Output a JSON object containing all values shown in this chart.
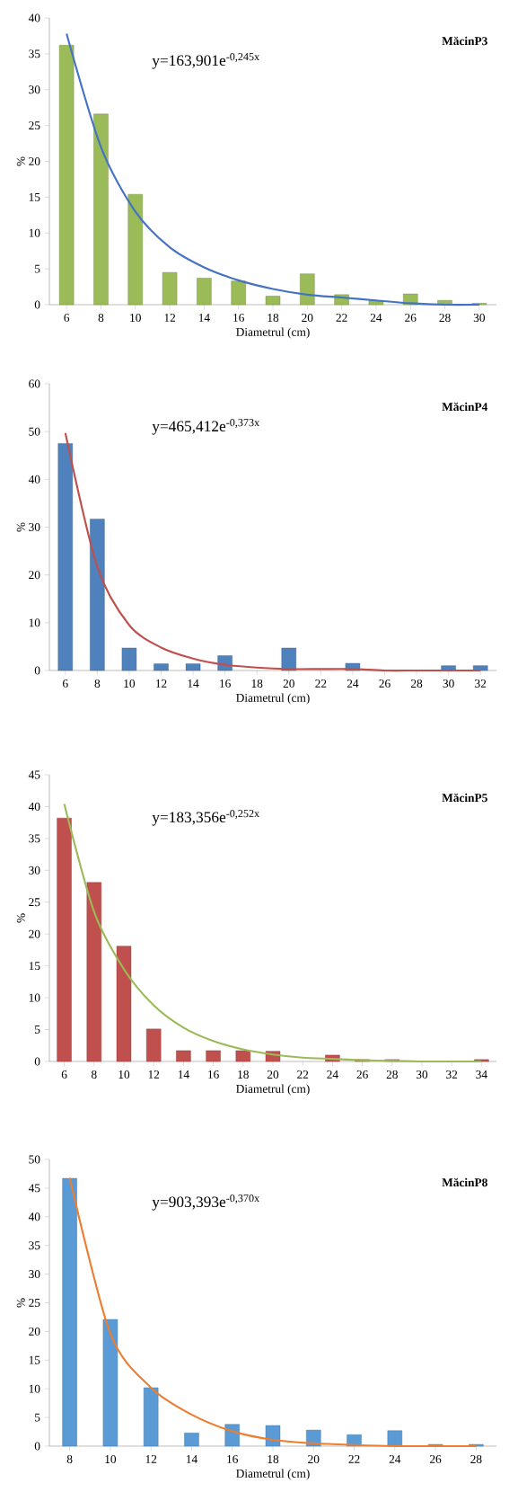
{
  "chart_data": [
    {
      "type": "bar",
      "title": "MăcinP3",
      "xlabel": "Diametrul (cm)",
      "ylabel": "%",
      "annotations": [
        "y=163,901e$^{-0,245x}$"
      ],
      "categories": [
        "6",
        "8",
        "10",
        "12",
        "14",
        "16",
        "18",
        "20",
        "22",
        "24",
        "26",
        "28",
        "30"
      ],
      "series": [
        {
          "color": "#9bbb59",
          "values": [
            36.2,
            26.6,
            15.4,
            4.5,
            3.7,
            3.3,
            1.2,
            4.3,
            1.4,
            0.6,
            1.5,
            0.6,
            0.2
          ]
        },
        {
          "type": "line",
          "color": "#4472c4",
          "values": [
            37.8,
            22.0,
            13.0,
            8.0,
            5.2,
            3.4,
            2.2,
            1.4,
            1.0,
            0.6,
            0.2,
            0,
            0
          ]
        }
      ],
      "ylim": [
        0,
        40
      ],
      "yticks": [
        0,
        5,
        10,
        15,
        20,
        25,
        30,
        35,
        40
      ]
    },
    {
      "type": "bar",
      "title": "MăcinP4",
      "xlabel": "Diametrul (cm)",
      "ylabel": "%",
      "annotations": [
        "y=465,412e$^{-0,373x}$"
      ],
      "categories": [
        "6",
        "8",
        "10",
        "12",
        "14",
        "16",
        "18",
        "20",
        "22",
        "24",
        "26",
        "28",
        "30",
        "32"
      ],
      "series": [
        {
          "color": "#4f81bd",
          "values": [
            47.5,
            31.7,
            4.7,
            1.4,
            1.4,
            3.1,
            null,
            4.7,
            null,
            1.5,
            null,
            null,
            1.0,
            1.0
          ]
        },
        {
          "type": "line",
          "color": "#c0504d",
          "values": [
            49.7,
            21.7,
            9.5,
            4.8,
            2.5,
            1.2,
            0.6,
            0.3,
            0.3,
            0.3,
            0,
            0,
            0,
            0
          ]
        }
      ],
      "ylim": [
        0,
        60
      ],
      "yticks": [
        0,
        10,
        20,
        30,
        40,
        50,
        60
      ]
    },
    {
      "type": "bar",
      "title": "MăcinP5",
      "xlabel": "Diametrul (cm)",
      "ylabel": "%",
      "annotations": [
        "y=183,356e$^{-0,252x}$"
      ],
      "categories": [
        "6",
        "8",
        "10",
        "12",
        "14",
        "16",
        "18",
        "20",
        "22",
        "24",
        "26",
        "28",
        "30",
        "32",
        "34"
      ],
      "series": [
        {
          "color": "#c0504d",
          "values": [
            38.2,
            28.1,
            18.1,
            5.1,
            1.7,
            1.7,
            1.7,
            1.6,
            null,
            1.0,
            0.3,
            0.3,
            null,
            null,
            0.3
          ]
        },
        {
          "type": "line",
          "color": "#9bbb59",
          "values": [
            40.4,
            23.5,
            14.5,
            8.8,
            5.3,
            3.2,
            1.9,
            1.1,
            0.6,
            0.4,
            0.2,
            0.1,
            0,
            0,
            0
          ]
        }
      ],
      "ylim": [
        0,
        45
      ],
      "yticks": [
        0,
        5,
        10,
        15,
        20,
        25,
        30,
        35,
        40,
        45
      ]
    },
    {
      "type": "bar",
      "title": "MăcinP8",
      "xlabel": "Diametrul (cm)",
      "ylabel": "%",
      "annotations": [
        "y=903,393e$^{-0,370x}$"
      ],
      "categories": [
        "8",
        "10",
        "12",
        "14",
        "16",
        "18",
        "20",
        "22",
        "24",
        "26",
        "28"
      ],
      "series": [
        {
          "color": "#5b9bd5",
          "values": [
            46.7,
            22.1,
            10.2,
            2.3,
            3.8,
            3.6,
            2.8,
            2.0,
            2.7,
            0.3,
            0.3
          ]
        },
        {
          "type": "line",
          "color": "#ed7d31",
          "values": [
            46.8,
            19.6,
            10.2,
            5.5,
            2.6,
            1.1,
            0.5,
            0.2,
            0,
            0,
            0
          ]
        }
      ],
      "ylim": [
        0,
        50
      ],
      "yticks": [
        0,
        5,
        10,
        15,
        20,
        25,
        30,
        35,
        40,
        45,
        50
      ]
    }
  ]
}
